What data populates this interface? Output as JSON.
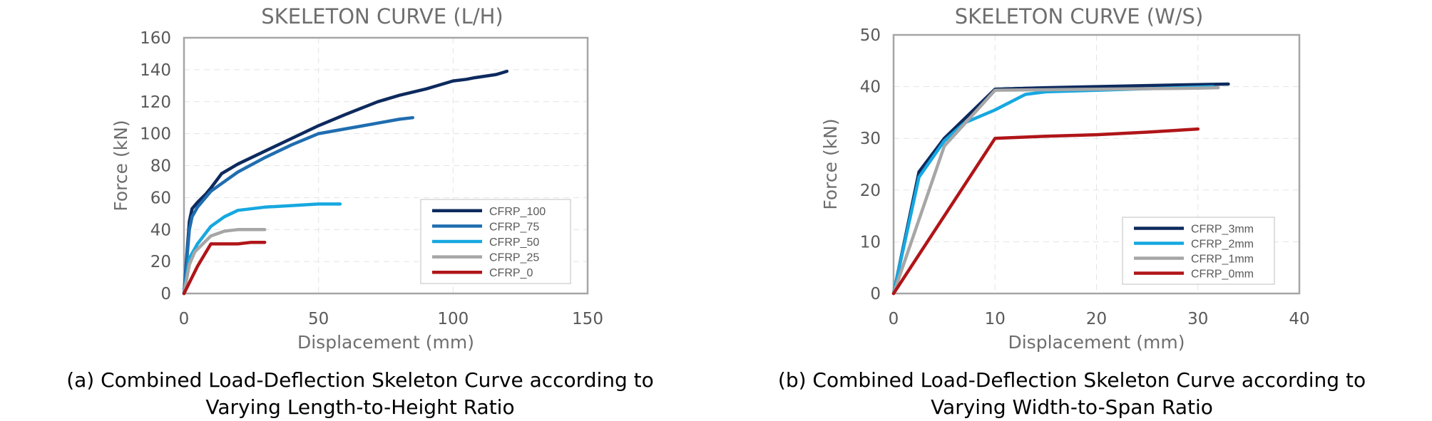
{
  "chart_data": [
    {
      "type": "line",
      "title": "SKELETON CURVE (L/H)",
      "xlabel": "Displacement (mm)",
      "ylabel": "Force (kN)",
      "xlim": [
        0,
        150
      ],
      "ylim": [
        0,
        160
      ],
      "xticks": [
        0,
        50,
        100,
        150
      ],
      "yticks": [
        0,
        20,
        40,
        60,
        80,
        100,
        120,
        140,
        160
      ],
      "grid": true,
      "legend_position": "bottom-right",
      "caption": [
        "(a) Combined Load-Deflection Skeleton Curve according to",
        "Varying Length-to-Height Ratio"
      ],
      "series": [
        {
          "name": "CFRP_100",
          "color": "#0d2a5e",
          "x": [
            0,
            2,
            3,
            5,
            8,
            10,
            14,
            20,
            30,
            40,
            50,
            60,
            72,
            80,
            90,
            96,
            100,
            105,
            108,
            112,
            116,
            120
          ],
          "y": [
            0,
            45,
            53,
            57,
            62,
            66,
            75,
            81,
            89,
            97,
            105,
            112,
            120,
            124,
            128,
            131,
            133,
            134,
            135,
            136,
            137,
            139
          ]
        },
        {
          "name": "CFRP_75",
          "color": "#1f6db0",
          "x": [
            0,
            2,
            3,
            5,
            10,
            15,
            20,
            30,
            40,
            50,
            60,
            70,
            80,
            85
          ],
          "y": [
            0,
            40,
            48,
            54,
            64,
            70,
            76,
            85,
            93,
            100,
            103,
            106,
            109,
            110
          ]
        },
        {
          "name": "CFRP_50",
          "color": "#16a8e0",
          "x": [
            0,
            2,
            5,
            10,
            15,
            20,
            30,
            40,
            50,
            58
          ],
          "y": [
            0,
            22,
            31,
            42,
            48,
            52,
            54,
            55,
            56,
            56
          ]
        },
        {
          "name": "CFRP_25",
          "color": "#a6a6a6",
          "x": [
            0,
            2,
            4,
            7,
            10,
            15,
            20,
            25,
            30
          ],
          "y": [
            0,
            18,
            26,
            31,
            36,
            39,
            40,
            40,
            40
          ]
        },
        {
          "name": "CFRP_0",
          "color": "#b01518",
          "x": [
            0,
            5,
            10,
            20,
            25,
            30
          ],
          "y": [
            0,
            17,
            31,
            31,
            32,
            32
          ]
        }
      ]
    },
    {
      "type": "line",
      "title": "SKELETON CURVE (W/S)",
      "xlabel": "Displacement (mm)",
      "ylabel": "Force (kN)",
      "xlim": [
        0,
        40
      ],
      "ylim": [
        0,
        50
      ],
      "xticks": [
        0,
        10,
        20,
        30,
        40
      ],
      "yticks": [
        0,
        10,
        20,
        30,
        40,
        50
      ],
      "grid": true,
      "legend_position": "bottom-right",
      "caption": [
        "(b) Combined Load-Deflection Skeleton Curve according to",
        "Varying Width-to-Span Ratio"
      ],
      "series": [
        {
          "name": "CFRP_3mm",
          "color": "#0d2a5e",
          "x": [
            0,
            2.5,
            5,
            10,
            15,
            20,
            25,
            30,
            33
          ],
          "y": [
            0,
            23.5,
            30,
            39.5,
            39.8,
            40,
            40.2,
            40.4,
            40.5
          ]
        },
        {
          "name": "CFRP_2mm",
          "color": "#16a8e0",
          "x": [
            0,
            2.5,
            5,
            7,
            10,
            13,
            15,
            20,
            25,
            31.5
          ],
          "y": [
            0,
            22.5,
            29.5,
            33,
            35.5,
            38.5,
            39,
            39.3,
            39.6,
            40
          ]
        },
        {
          "name": "CFRP_1mm",
          "color": "#a6a6a6",
          "x": [
            0,
            5,
            10,
            15,
            20,
            25,
            30,
            32
          ],
          "y": [
            0,
            28.5,
            39.3,
            39.4,
            39.5,
            39.6,
            39.7,
            39.8
          ]
        },
        {
          "name": "CFRP_0mm",
          "color": "#b01518",
          "x": [
            0,
            10,
            15,
            20,
            25,
            30
          ],
          "y": [
            0,
            30,
            30.4,
            30.7,
            31.2,
            31.8
          ]
        }
      ]
    }
  ]
}
